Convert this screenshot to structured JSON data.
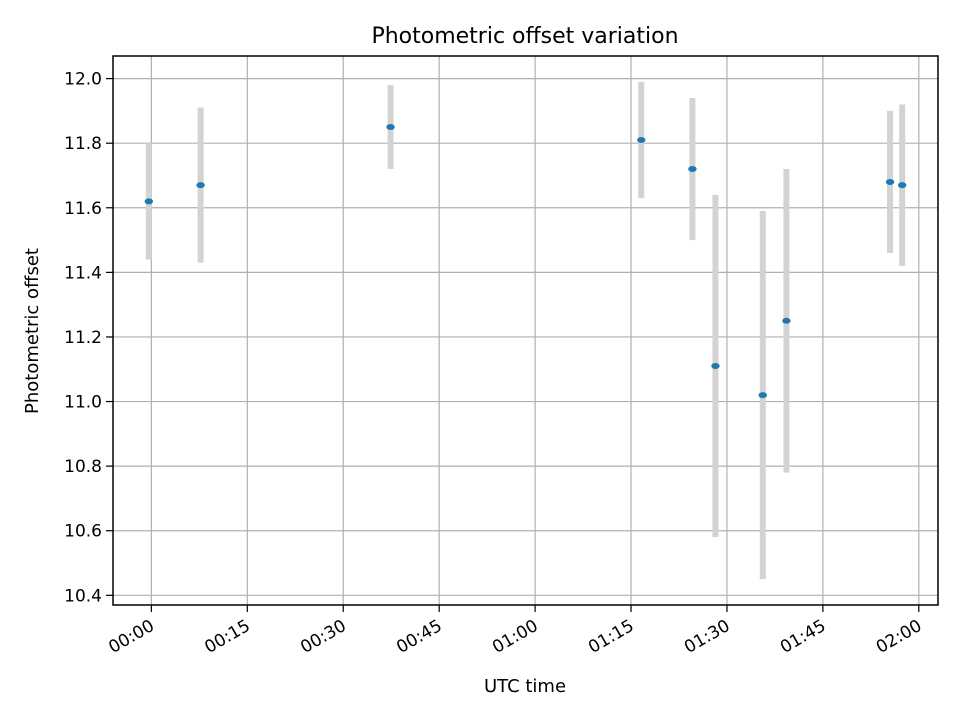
{
  "chart_data": {
    "type": "scatter",
    "title": "Photometric offset variation",
    "xlabel": "UTC time",
    "ylabel": "Photometric offset",
    "x_ticks": [
      "00:00",
      "00:15",
      "00:30",
      "00:45",
      "01:00",
      "01:15",
      "01:30",
      "01:45",
      "02:00"
    ],
    "y_ticks": [
      "10.4",
      "10.6",
      "10.8",
      "11.0",
      "11.2",
      "11.4",
      "11.6",
      "11.8",
      "12.0"
    ],
    "xlim": [
      "23:54",
      "02:03"
    ],
    "ylim": [
      10.37,
      12.07
    ],
    "grid": true,
    "points": [
      {
        "t": "23:59.6",
        "y": 11.62,
        "err": 0.18
      },
      {
        "t": "00:07.7",
        "y": 11.67,
        "err": 0.24
      },
      {
        "t": "00:37.4",
        "y": 11.85,
        "err": 0.13
      },
      {
        "t": "01:16.6",
        "y": 11.81,
        "err": 0.18
      },
      {
        "t": "01:24.6",
        "y": 11.72,
        "err": 0.22
      },
      {
        "t": "01:28.2",
        "y": 11.11,
        "err": 0.53
      },
      {
        "t": "01:35.6",
        "y": 11.02,
        "err": 0.57
      },
      {
        "t": "01:39.3",
        "y": 11.25,
        "err": 0.47
      },
      {
        "t": "01:55.5",
        "y": 11.68,
        "err": 0.22
      },
      {
        "t": "01:57.4",
        "y": 11.67,
        "err": 0.25
      }
    ],
    "colors": {
      "marker": "#1f77b4",
      "errorbar": "#d3d3d3",
      "grid": "#b0b0b0"
    }
  }
}
